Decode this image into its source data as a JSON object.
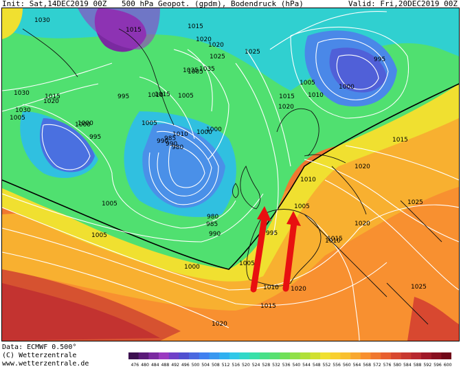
{
  "header": {
    "init": "Init: Sat,14DEC2019 00Z",
    "title": "500 hPa Geopot. (gpdm), Bodendruck (hPa)",
    "valid": "Valid: Fri,20DEC2019 00Z"
  },
  "footer": {
    "data": "Data: ECMWF  0.500°",
    "copyright": "(C) Wetterzentrale",
    "url": "www.wetterzentrale.de"
  },
  "colorbar": {
    "values": [
      "476",
      "480",
      "484",
      "488",
      "492",
      "496",
      "500",
      "504",
      "508",
      "512",
      "516",
      "520",
      "524",
      "528",
      "532",
      "536",
      "540",
      "544",
      "548",
      "552",
      "556",
      "560",
      "564",
      "568",
      "572",
      "576",
      "580",
      "584",
      "588",
      "592",
      "596",
      "600"
    ],
    "colors": [
      "#3c1050",
      "#5a1a78",
      "#7a2aa0",
      "#9a3ac0",
      "#7040c8",
      "#5050d0",
      "#4a68e0",
      "#4080f0",
      "#3898f0",
      "#30b0f0",
      "#30c8e8",
      "#30d8c8",
      "#38e0a8",
      "#48e088",
      "#58e070",
      "#70e058",
      "#90e048",
      "#b0e038",
      "#d0e030",
      "#f0e030",
      "#f8d030",
      "#f8c030",
      "#f8a830",
      "#f89030",
      "#f07830",
      "#e86030",
      "#d84830",
      "#c83830",
      "#b82830",
      "#a01828",
      "#881020",
      "#700818"
    ]
  },
  "map": {
    "isobar_labels": [
      "1030",
      "1015",
      "1015",
      "1020",
      "1025",
      "1005",
      "1005",
      "995",
      "1005",
      "1010",
      "1000",
      "990",
      "1035",
      "1035",
      "1025",
      "1020",
      "1015",
      "1010",
      "1010",
      "1015",
      "1030",
      "1020",
      "1030",
      "1005",
      "1000",
      "995",
      "1015",
      "1000",
      "990",
      "985",
      "980",
      "1000",
      "1020",
      "995",
      "1015",
      "1000",
      "1005",
      "980",
      "985",
      "990",
      "1010",
      "1005",
      "995",
      "1000",
      "1005",
      "1005",
      "1005",
      "1010",
      "1020",
      "1020",
      "1015",
      "1025",
      "1025",
      "1020",
      "1010",
      "1015",
      "1020"
    ],
    "arrows": [
      {
        "color": "#e81010"
      },
      {
        "color": "#e81010"
      }
    ]
  }
}
